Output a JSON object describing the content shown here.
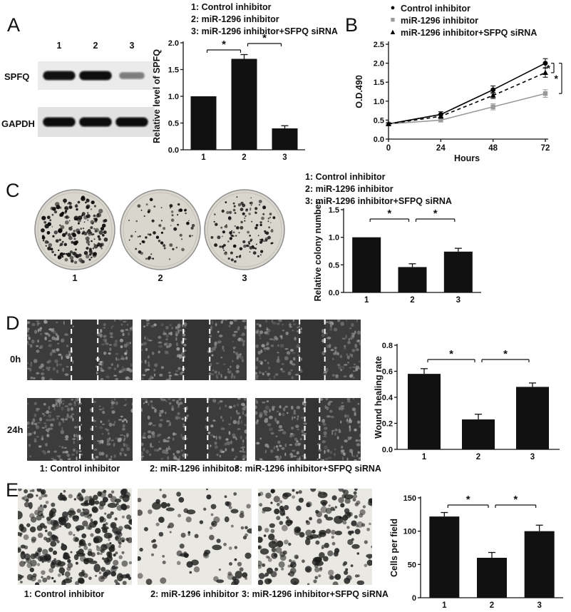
{
  "panels": {
    "a": {
      "label": "A",
      "legend": [
        "1: Control inhibitor",
        "2: miR-1296 inhibitor",
        "3: miR-1296 inhibitor+SFPQ siRNA"
      ],
      "blot": {
        "lane_labels": [
          "1",
          "2",
          "3"
        ],
        "rows": [
          {
            "protein": "SPFQ",
            "band_intensities": [
              0.95,
              0.97,
              0.35
            ]
          },
          {
            "protein": "GAPDH",
            "band_intensities": [
              0.97,
              0.97,
              0.97
            ]
          }
        ]
      }
    },
    "b": {
      "label": "B"
    },
    "c": {
      "label": "C",
      "legend": [
        "1: Control inhibitor",
        "2: miR-1296 inhibitor",
        "3: miR-1296 inhibitor+SFPQ siRNA"
      ],
      "dish_labels": [
        "1",
        "2",
        "3"
      ],
      "approx_colony_counts": [
        210,
        70,
        130
      ]
    },
    "d": {
      "label": "D",
      "time_labels": [
        "0h",
        "24h"
      ],
      "captions": [
        "1: Control inhibitor",
        "2: miR-1296 inhibitor",
        "3: miR-1296 inhibitor+SFPQ siRNA"
      ],
      "wound_gap_fractions": [
        [
          [
            0.42,
            0.67
          ],
          [
            0.4,
            0.65
          ],
          [
            0.42,
            0.66
          ]
        ],
        [
          [
            0.5,
            0.62
          ],
          [
            0.42,
            0.63
          ],
          [
            0.47,
            0.61
          ]
        ]
      ]
    },
    "e": {
      "label": "E",
      "captions": [
        "1: Control inhibitor",
        "2: miR-1296 inhibitor",
        "3: miR-1296 inhibitor+SFPQ siRNA"
      ],
      "approx_cell_counts": [
        300,
        85,
        190
      ]
    }
  },
  "chart_data": [
    {
      "id": "panel-a-bar",
      "type": "bar",
      "categories": [
        "1",
        "2",
        "3"
      ],
      "values": [
        1.0,
        1.7,
        0.4
      ],
      "errors": [
        0,
        0.08,
        0.05
      ],
      "title": "",
      "xlabel": "",
      "ylabel": "Relative level of SPFQ",
      "ylim": [
        0,
        2.0
      ],
      "yticks": [
        0,
        0.5,
        1.0,
        1.5,
        2.0
      ],
      "bar_color": "#111111",
      "significance": [
        {
          "pair": [
            0,
            1
          ],
          "label": "*"
        },
        {
          "pair": [
            1,
            2
          ],
          "label": "*"
        }
      ]
    },
    {
      "id": "panel-b-line",
      "type": "line",
      "x": [
        0,
        24,
        48,
        72
      ],
      "xlabel": "Hours",
      "ylabel": "O.D.490",
      "ylim": [
        0,
        2.5
      ],
      "yticks": [
        0,
        0.5,
        1.0,
        1.5,
        2.0,
        2.5
      ],
      "series": [
        {
          "name": "Control inhibitor",
          "values": [
            0.4,
            0.65,
            1.3,
            2.0
          ],
          "errors": [
            0.03,
            0.07,
            0.1,
            0.12
          ],
          "marker": "circle",
          "color": "#000000",
          "dashed": false
        },
        {
          "name": "miR-1296 inhibitor",
          "values": [
            0.4,
            0.5,
            0.85,
            1.2
          ],
          "errors": [
            0.03,
            0.05,
            0.08,
            0.1
          ],
          "marker": "square",
          "color": "#9a9a9a",
          "dashed": false
        },
        {
          "name": "miR-1296 inhibitor+SFPQ siRNA",
          "values": [
            0.4,
            0.6,
            1.15,
            1.75
          ],
          "errors": [
            0.03,
            0.05,
            0.08,
            0.12
          ],
          "marker": "triangle",
          "color": "#000000",
          "dashed": true
        }
      ],
      "legend_position": "top",
      "significance": [
        {
          "series": [
            0,
            2
          ],
          "label": "*"
        },
        {
          "series": [
            0,
            1
          ],
          "label": "*"
        }
      ]
    },
    {
      "id": "panel-c-bar",
      "type": "bar",
      "categories": [
        "1",
        "2",
        "3"
      ],
      "values": [
        1.0,
        0.46,
        0.74
      ],
      "errors": [
        0,
        0.06,
        0.06
      ],
      "title": "",
      "xlabel": "",
      "ylabel": "Relative colony number",
      "ylim": [
        0,
        1.5
      ],
      "yticks": [
        0,
        0.5,
        1.0,
        1.5
      ],
      "bar_color": "#111111",
      "significance": [
        {
          "pair": [
            0,
            1
          ],
          "label": "*"
        },
        {
          "pair": [
            1,
            2
          ],
          "label": "*"
        }
      ]
    },
    {
      "id": "panel-d-bar",
      "type": "bar",
      "categories": [
        "1",
        "2",
        "3"
      ],
      "values": [
        0.58,
        0.23,
        0.48
      ],
      "errors": [
        0.04,
        0.04,
        0.03
      ],
      "title": "",
      "xlabel": "",
      "ylabel": "Wound healing rate",
      "ylim": [
        0,
        0.8
      ],
      "yticks": [
        0,
        0.2,
        0.4,
        0.6,
        0.8
      ],
      "bar_color": "#111111",
      "significance": [
        {
          "pair": [
            0,
            1
          ],
          "label": "*"
        },
        {
          "pair": [
            1,
            2
          ],
          "label": "*"
        }
      ]
    },
    {
      "id": "panel-e-bar",
      "type": "bar",
      "categories": [
        "1",
        "2",
        "3"
      ],
      "values": [
        122,
        60,
        100
      ],
      "errors": [
        6,
        8,
        9
      ],
      "title": "",
      "xlabel": "",
      "ylabel": "Cells per field",
      "ylim": [
        0,
        150
      ],
      "yticks": [
        0,
        50,
        100,
        150
      ],
      "bar_color": "#111111",
      "significance": [
        {
          "pair": [
            0,
            1
          ],
          "label": "*"
        },
        {
          "pair": [
            1,
            2
          ],
          "label": "*"
        }
      ]
    }
  ]
}
